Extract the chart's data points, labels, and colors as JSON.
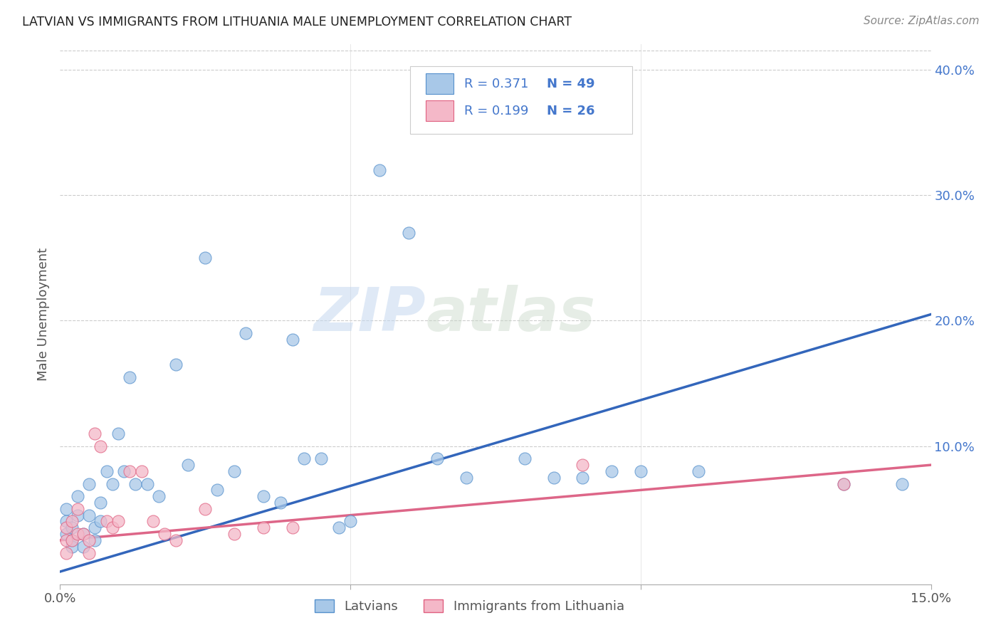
{
  "title": "LATVIAN VS IMMIGRANTS FROM LITHUANIA MALE UNEMPLOYMENT CORRELATION CHART",
  "source": "Source: ZipAtlas.com",
  "ylabel": "Male Unemployment",
  "legend_label1": "Latvians",
  "legend_label2": "Immigrants from Lithuania",
  "legend_r1": "R = 0.371",
  "legend_n1": "N = 49",
  "legend_r2": "R = 0.199",
  "legend_n2": "N = 26",
  "color_latvian_fill": "#a8c8e8",
  "color_latvian_edge": "#5590cc",
  "color_lithuania_fill": "#f4b8c8",
  "color_lithuania_edge": "#e06080",
  "color_line_latvian": "#3366bb",
  "color_line_lithuania": "#dd6688",
  "color_text_blue": "#4477cc",
  "color_text_dark": "#333333",
  "watermark_zip": "ZIP",
  "watermark_atlas": "atlas",
  "latvian_x": [
    0.001,
    0.001,
    0.001,
    0.002,
    0.002,
    0.002,
    0.003,
    0.003,
    0.004,
    0.004,
    0.005,
    0.005,
    0.006,
    0.006,
    0.007,
    0.007,
    0.008,
    0.009,
    0.01,
    0.011,
    0.012,
    0.013,
    0.015,
    0.017,
    0.02,
    0.022,
    0.025,
    0.027,
    0.03,
    0.032,
    0.035,
    0.038,
    0.04,
    0.042,
    0.045,
    0.048,
    0.05,
    0.055,
    0.06,
    0.065,
    0.07,
    0.08,
    0.085,
    0.09,
    0.095,
    0.1,
    0.11,
    0.135,
    0.145
  ],
  "latvian_y": [
    0.04,
    0.03,
    0.05,
    0.035,
    0.025,
    0.02,
    0.06,
    0.045,
    0.03,
    0.02,
    0.07,
    0.045,
    0.035,
    0.025,
    0.055,
    0.04,
    0.08,
    0.07,
    0.11,
    0.08,
    0.155,
    0.07,
    0.07,
    0.06,
    0.165,
    0.085,
    0.25,
    0.065,
    0.08,
    0.19,
    0.06,
    0.055,
    0.185,
    0.09,
    0.09,
    0.035,
    0.04,
    0.32,
    0.27,
    0.09,
    0.075,
    0.09,
    0.075,
    0.075,
    0.08,
    0.08,
    0.08,
    0.07,
    0.07
  ],
  "lithuania_x": [
    0.001,
    0.001,
    0.001,
    0.002,
    0.002,
    0.003,
    0.003,
    0.004,
    0.005,
    0.005,
    0.006,
    0.007,
    0.008,
    0.009,
    0.01,
    0.012,
    0.014,
    0.016,
    0.018,
    0.02,
    0.025,
    0.03,
    0.035,
    0.04,
    0.09,
    0.135
  ],
  "lithuania_y": [
    0.035,
    0.025,
    0.015,
    0.04,
    0.025,
    0.05,
    0.03,
    0.03,
    0.025,
    0.015,
    0.11,
    0.1,
    0.04,
    0.035,
    0.04,
    0.08,
    0.08,
    0.04,
    0.03,
    0.025,
    0.05,
    0.03,
    0.035,
    0.035,
    0.085,
    0.07
  ],
  "xlim": [
    0.0,
    0.15
  ],
  "ylim": [
    -0.01,
    0.42
  ],
  "line_lv_x0": 0.0,
  "line_lv_y0": 0.0,
  "line_lv_x1": 0.15,
  "line_lv_y1": 0.205,
  "line_lt_x0": 0.0,
  "line_lt_y0": 0.025,
  "line_lt_x1": 0.15,
  "line_lt_y1": 0.085,
  "figsize": [
    14.06,
    8.92
  ],
  "dpi": 100
}
